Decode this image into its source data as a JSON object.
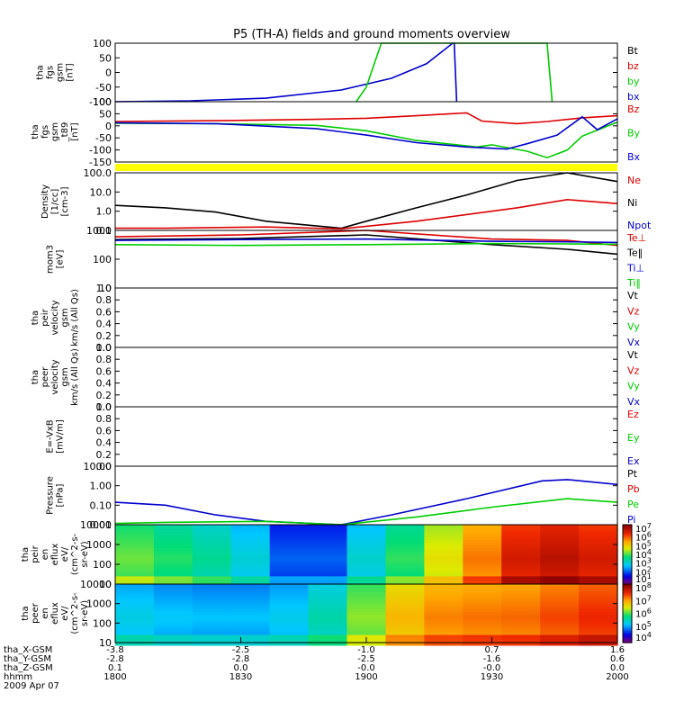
{
  "title": "P5 (TH-A) fields and ground moments overview",
  "colors": {
    "black": "#000000",
    "red": "#dd0000",
    "green": "#00cc00",
    "blue": "#0000cc",
    "yellow": "#ffff00"
  },
  "chart_data": [
    {
      "type": "line",
      "ylabel": [
        "tha",
        "fgs",
        "gsm",
        "[nT]"
      ],
      "yticks": [
        "100",
        "50",
        "0",
        "-50",
        "-100"
      ],
      "ylim": [
        -100,
        100
      ],
      "legend": [
        {
          "name": "Bt",
          "color": "black"
        },
        {
          "name": "bz",
          "color": "red"
        },
        {
          "name": "by",
          "color": "green"
        },
        {
          "name": "bx",
          "color": "blue"
        }
      ],
      "series": [
        {
          "name": "bx",
          "color": "blue",
          "x": [
            0,
            0.15,
            0.3,
            0.45,
            0.55,
            0.62,
            0.672,
            0.675,
            0.68
          ],
          "y": [
            -100,
            -97,
            -88,
            -60,
            -20,
            30,
            100,
            100,
            -100
          ]
        },
        {
          "name": "by",
          "color": "green",
          "x": [
            0.48,
            0.5,
            0.53,
            0.86,
            0.87
          ],
          "y": [
            -100,
            -50,
            100,
            100,
            -100
          ]
        }
      ]
    },
    {
      "type": "line",
      "ylabel": [
        "tha",
        "fgs",
        "gsm",
        "_t89",
        "[nT]"
      ],
      "yticks": [
        "100",
        "50",
        "0",
        "-50",
        "-100",
        "-150"
      ],
      "ylim": [
        -170,
        110
      ],
      "legend": [
        {
          "name": "Bz",
          "color": "red"
        },
        {
          "name": "By",
          "color": "green"
        },
        {
          "name": "Bx",
          "color": "blue"
        }
      ],
      "series": [
        {
          "name": "Bz",
          "color": "red",
          "x": [
            0,
            0.2,
            0.4,
            0.5,
            0.6,
            0.7,
            0.73,
            0.8,
            0.86,
            0.93,
            1
          ],
          "y": [
            18,
            22,
            28,
            33,
            45,
            58,
            20,
            8,
            18,
            35,
            45
          ]
        },
        {
          "name": "By",
          "color": "green",
          "x": [
            0,
            0.2,
            0.4,
            0.5,
            0.6,
            0.72,
            0.75,
            0.82,
            0.86,
            0.9,
            0.93,
            1
          ],
          "y": [
            10,
            8,
            0,
            -25,
            -70,
            -100,
            -90,
            -120,
            -150,
            -115,
            -50,
            15
          ]
        },
        {
          "name": "Bx",
          "color": "blue",
          "x": [
            0,
            0.2,
            0.4,
            0.5,
            0.6,
            0.7,
            0.78,
            0.82,
            0.88,
            0.93,
            0.96,
            1
          ],
          "y": [
            12,
            8,
            -15,
            -45,
            -80,
            -100,
            -110,
            -85,
            -45,
            40,
            -20,
            30
          ]
        }
      ]
    },
    {
      "type": "line",
      "yscale": "log",
      "ylabel": [
        "Density",
        "[1/cc]",
        "[cm-3]"
      ],
      "yticks": [
        "100.0",
        "10.0",
        "1.0",
        "0.1"
      ],
      "ylim": [
        0.1,
        100
      ],
      "legend": [
        {
          "name": "Ne",
          "color": "red"
        },
        {
          "name": "Ni",
          "color": "black"
        },
        {
          "name": "Npot",
          "color": "blue"
        }
      ],
      "series": [
        {
          "name": "Ni",
          "color": "black",
          "x": [
            0,
            0.1,
            0.2,
            0.3,
            0.45,
            0.5,
            0.6,
            0.7,
            0.8,
            0.9,
            1
          ],
          "y": [
            2,
            1.5,
            0.9,
            0.3,
            0.13,
            0.3,
            1.5,
            7,
            40,
            100,
            35
          ]
        },
        {
          "name": "Ne",
          "color": "red",
          "x": [
            0,
            0.1,
            0.3,
            0.45,
            0.6,
            0.8,
            0.9,
            1
          ],
          "y": [
            0.13,
            0.13,
            0.15,
            0.12,
            0.3,
            1.5,
            4,
            2.5
          ]
        }
      ]
    },
    {
      "type": "line",
      "yscale": "log",
      "ylabel": [
        "mom3",
        "[eV]"
      ],
      "yticks": [
        "1000",
        "100",
        "10"
      ],
      "ylim": [
        10,
        1000
      ],
      "legend": [
        {
          "name": "Te⊥",
          "color": "red"
        },
        {
          "name": "Te‖",
          "color": "black"
        },
        {
          "name": "Ti⊥",
          "color": "blue"
        },
        {
          "name": "Ti‖",
          "color": "green"
        }
      ],
      "series": [
        {
          "name": "Te⊥",
          "color": "red",
          "x": [
            0,
            0.25,
            0.5,
            0.75,
            0.9,
            1
          ],
          "y": [
            600,
            700,
            1000,
            500,
            450,
            300
          ]
        },
        {
          "name": "Te‖",
          "color": "black",
          "x": [
            0,
            0.25,
            0.5,
            0.75,
            0.9,
            1
          ],
          "y": [
            480,
            520,
            700,
            320,
            220,
            150
          ]
        },
        {
          "name": "Ti⊥",
          "color": "blue",
          "x": [
            0,
            0.25,
            0.5,
            0.75,
            0.9,
            1
          ],
          "y": [
            450,
            480,
            500,
            420,
            400,
            380
          ]
        },
        {
          "name": "Ti‖",
          "color": "green",
          "x": [
            0,
            0.25,
            0.5,
            0.75,
            0.9,
            1
          ],
          "y": [
            320,
            300,
            320,
            350,
            340,
            330
          ]
        }
      ]
    },
    {
      "type": "line",
      "ylabel": [
        "tha",
        "peir",
        "velocity",
        "gsm",
        "km/s (All Qs)"
      ],
      "yticks": [
        "1.0",
        "0.8",
        "0.6",
        "0.4",
        "0.2",
        "0.0"
      ],
      "ylim": [
        0,
        1
      ],
      "legend": [
        {
          "name": "Vt",
          "color": "black"
        },
        {
          "name": "Vz",
          "color": "red"
        },
        {
          "name": "Vy",
          "color": "green"
        },
        {
          "name": "Vx",
          "color": "blue"
        }
      ],
      "series": []
    },
    {
      "type": "line",
      "ylabel": [
        "tha",
        "peer",
        "velocity",
        "gsm",
        "km/s (All Qs)"
      ],
      "yticks": [
        "1.0",
        "0.8",
        "0.6",
        "0.4",
        "0.2",
        "0.0"
      ],
      "ylim": [
        0,
        1
      ],
      "legend": [
        {
          "name": "Vt",
          "color": "black"
        },
        {
          "name": "Vz",
          "color": "red"
        },
        {
          "name": "Vy",
          "color": "green"
        },
        {
          "name": "Vx",
          "color": "blue"
        }
      ],
      "series": []
    },
    {
      "type": "line",
      "ylabel": [
        "E=-VxB",
        "[mV/m]"
      ],
      "yticks": [
        "1.0",
        "0.8",
        "0.6",
        "0.4",
        "0.2",
        "0.0"
      ],
      "ylim": [
        0,
        1
      ],
      "legend": [
        {
          "name": "Ez",
          "color": "red"
        },
        {
          "name": "Ey",
          "color": "green"
        },
        {
          "name": "Ex",
          "color": "blue"
        }
      ],
      "series": []
    },
    {
      "type": "line",
      "yscale": "log",
      "ylabel": [
        "Pressure",
        "[nPa]"
      ],
      "yticks": [
        "10.00",
        "1.00",
        "0.10",
        "0.01"
      ],
      "ylim": [
        0.005,
        20
      ],
      "legend": [
        {
          "name": "Pt",
          "color": "black"
        },
        {
          "name": "Pb",
          "color": "red"
        },
        {
          "name": "Pe",
          "color": "green"
        },
        {
          "name": "Pi",
          "color": "blue"
        }
      ],
      "series": [
        {
          "name": "Pi",
          "color": "blue",
          "x": [
            0,
            0.1,
            0.2,
            0.3,
            0.45,
            0.55,
            0.7,
            0.85,
            0.9,
            1
          ],
          "y": [
            0.12,
            0.08,
            0.02,
            0.008,
            0.004,
            0.02,
            0.2,
            2.5,
            3,
            1.5
          ]
        },
        {
          "name": "Pe",
          "color": "green",
          "x": [
            0,
            0.1,
            0.3,
            0.45,
            0.6,
            0.75,
            0.9,
            1
          ],
          "y": [
            0.006,
            0.007,
            0.008,
            0.005,
            0.015,
            0.06,
            0.2,
            0.12
          ]
        }
      ]
    },
    {
      "type": "heatmap",
      "ylabel": [
        "tha",
        "peir",
        "en",
        "eflux",
        "eV/",
        "(cm^2-s-",
        "sr-eV)"
      ],
      "yticks": [
        "10000",
        "1000",
        "100",
        "10"
      ],
      "ylim": [
        5,
        20000
      ],
      "colorbar_ticks": [
        "10",
        "10",
        "10",
        "10",
        "10",
        "10",
        "10"
      ],
      "colorbar_exps": [
        "7",
        "6",
        "5",
        "4",
        "3",
        "2",
        "1"
      ],
      "columns": [
        0.55,
        0.5,
        0.45,
        0.4,
        0.3,
        0.12,
        0.3,
        0.42,
        0.55,
        0.7,
        0.85,
        0.95,
        0.92,
        0.88
      ]
    },
    {
      "type": "heatmap",
      "ylabel": [
        "tha",
        "peer",
        "en",
        "eflux",
        "eV/",
        "(cm^2-s-",
        "sr-eV)"
      ],
      "yticks": [
        "10000",
        "1000",
        "100",
        "10"
      ],
      "ylim": [
        5,
        20000
      ],
      "colorbar_ticks": [
        "10",
        "10",
        "10",
        "10",
        "10"
      ],
      "colorbar_exps": [
        "8",
        "7",
        "6",
        "5",
        "4"
      ],
      "columns": [
        0.35,
        0.32,
        0.3,
        0.3,
        0.3,
        0.35,
        0.45,
        0.65,
        0.75,
        0.78,
        0.78,
        0.8,
        0.85,
        0.87
      ]
    }
  ],
  "xaxis": {
    "rows": [
      {
        "label": "tha_X-GSM",
        "values": [
          "-3.8",
          "-2.5",
          "-1.0",
          "0.7",
          "1.6"
        ]
      },
      {
        "label": "tha_Y-GSM",
        "values": [
          "-2.8",
          "-2.8",
          "-2.5",
          "-1.6",
          "0.6"
        ]
      },
      {
        "label": "tha_Z-GSM",
        "values": [
          "0.1",
          "0.0",
          "-0.0",
          "-0.0",
          "0.0"
        ]
      },
      {
        "label": "hhmm",
        "values": [
          "1800",
          "1830",
          "1900",
          "1930",
          "2000"
        ]
      }
    ],
    "date": "2009 Apr 07"
  }
}
